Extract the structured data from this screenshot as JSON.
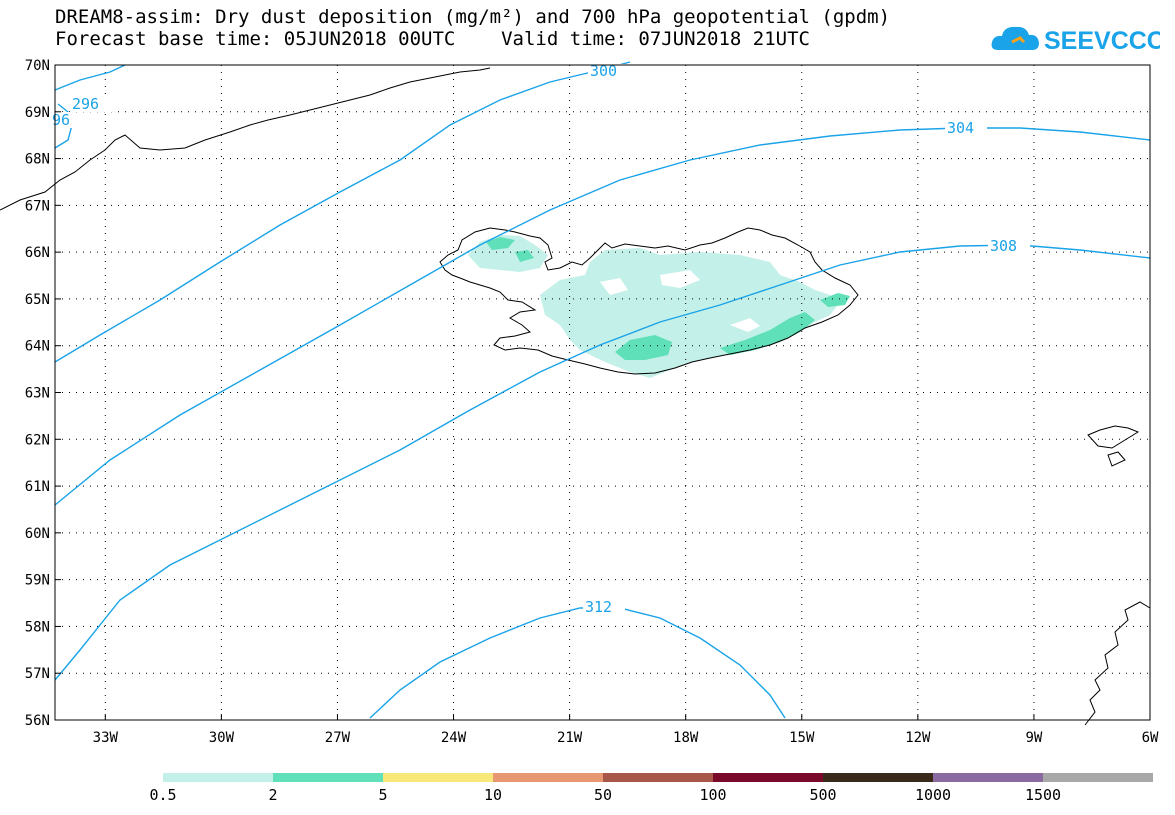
{
  "header": {
    "title_line1": "DREAM8-assim: Dry dust deposition (mg/m²) and 700 hPa geopotential (gpdm)",
    "title_line2": "Forecast base time: 05JUN2018 00UTC    Valid time: 07JUN2018 21UTC",
    "logo_text": "SEEVCCC"
  },
  "map": {
    "lat_labels": [
      "70N",
      "69N",
      "68N",
      "67N",
      "66N",
      "65N",
      "64N",
      "63N",
      "62N",
      "61N",
      "60N",
      "59N",
      "58N",
      "57N",
      "56N"
    ],
    "lon_labels": [
      "33W",
      "30W",
      "27W",
      "24W",
      "21W",
      "18W",
      "15W",
      "12W",
      "9W",
      "6W"
    ],
    "contour_labels": [
      "296",
      "96",
      "300",
      "304",
      "308",
      "312"
    ],
    "contour_color": "#1aa3e8"
  },
  "legend": {
    "labels": [
      "0.5",
      "2",
      "5",
      "10",
      "50",
      "100",
      "500",
      "1000",
      "1500"
    ],
    "colors": [
      "#c3f0e8",
      "#5fe0b8",
      "#f8e87a",
      "#e89870",
      "#a85848",
      "#7a0a2a",
      "#3a2a1a",
      "#8a6aa0",
      "#a8a8a8"
    ]
  }
}
